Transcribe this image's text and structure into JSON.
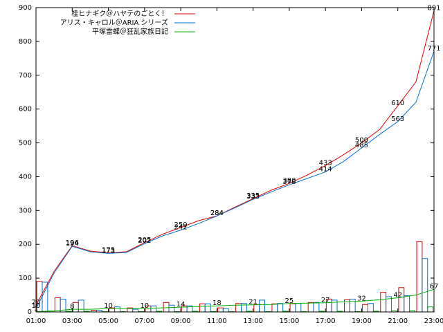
{
  "chart_data": {
    "type": "line",
    "xlim": [
      1,
      23
    ],
    "ylim": [
      0,
      900
    ],
    "xticks": [
      {
        "value": 1,
        "label": "01:00"
      },
      {
        "value": 3,
        "label": "03:00"
      },
      {
        "value": 5,
        "label": "05:00"
      },
      {
        "value": 7,
        "label": "07:00"
      },
      {
        "value": 9,
        "label": "09:00"
      },
      {
        "value": 11,
        "label": "11:00"
      },
      {
        "value": 13,
        "label": "13:00"
      },
      {
        "value": 15,
        "label": "15:00"
      },
      {
        "value": 17,
        "label": "17:00"
      },
      {
        "value": 19,
        "label": "19:00"
      },
      {
        "value": 21,
        "label": "21:00"
      },
      {
        "value": 23,
        "label": "23:00"
      }
    ],
    "yticks": [
      0,
      100,
      200,
      300,
      400,
      500,
      600,
      700,
      800,
      900
    ],
    "legend": "top-left",
    "x": [
      1,
      2,
      3,
      4,
      5,
      6,
      7,
      8,
      9,
      10,
      11,
      12,
      13,
      14,
      15,
      16,
      17,
      18,
      19,
      20,
      21,
      22,
      23
    ],
    "series": [
      {
        "name": "桂ヒナギク＠ハヤテのごとく！",
        "color": "#e00000",
        "values": [
          20,
          120,
          196,
          180,
          175,
          178,
          205,
          230,
          250,
          270,
          284,
          310,
          335,
          360,
          380,
          405,
          433,
          465,
          500,
          540,
          610,
          680,
          891
        ]
      },
      {
        "name": "アリス・キャロル＠ARIA シリーズ",
        "color": "#0070d0",
        "values": [
          10,
          115,
          194,
          178,
          173,
          176,
          202,
          225,
          242,
          262,
          284,
          308,
          333,
          355,
          376,
          395,
          414,
          445,
          485,
          525,
          563,
          620,
          771
        ]
      },
      {
        "name": "平塚雷蝶＠狂乱家族日記",
        "color": "#00b000",
        "values": [
          1,
          3,
          8,
          8,
          10,
          10,
          10,
          12,
          14,
          16,
          18,
          20,
          21,
          22,
          25,
          26,
          27,
          30,
          32,
          36,
          42,
          50,
          67
        ]
      }
    ],
    "bar_x": [
      1,
      2,
      3,
      4,
      5,
      6,
      7,
      8,
      9,
      10,
      11,
      12,
      13,
      14,
      15,
      16,
      17,
      18,
      19,
      20,
      21,
      22
    ],
    "bar_series": [
      {
        "color": "#e00000",
        "values": [
          90,
          42,
          28,
          5,
          12,
          12,
          18,
          28,
          18,
          24,
          12,
          25,
          22,
          24,
          24,
          28,
          38,
          36,
          22,
          58,
          72,
          208
        ]
      },
      {
        "color": "#0070d0",
        "values": [
          88,
          38,
          35,
          5,
          15,
          8,
          18,
          20,
          18,
          24,
          10,
          25,
          35,
          25,
          25,
          28,
          35,
          38,
          25,
          45,
          48,
          158
        ]
      },
      {
        "color": "#00b000",
        "values": [
          3,
          2,
          2,
          1,
          1,
          1,
          2,
          1,
          2,
          1,
          1,
          2,
          1,
          2,
          1,
          2,
          2,
          1,
          2,
          3,
          4,
          15
        ]
      }
    ]
  }
}
